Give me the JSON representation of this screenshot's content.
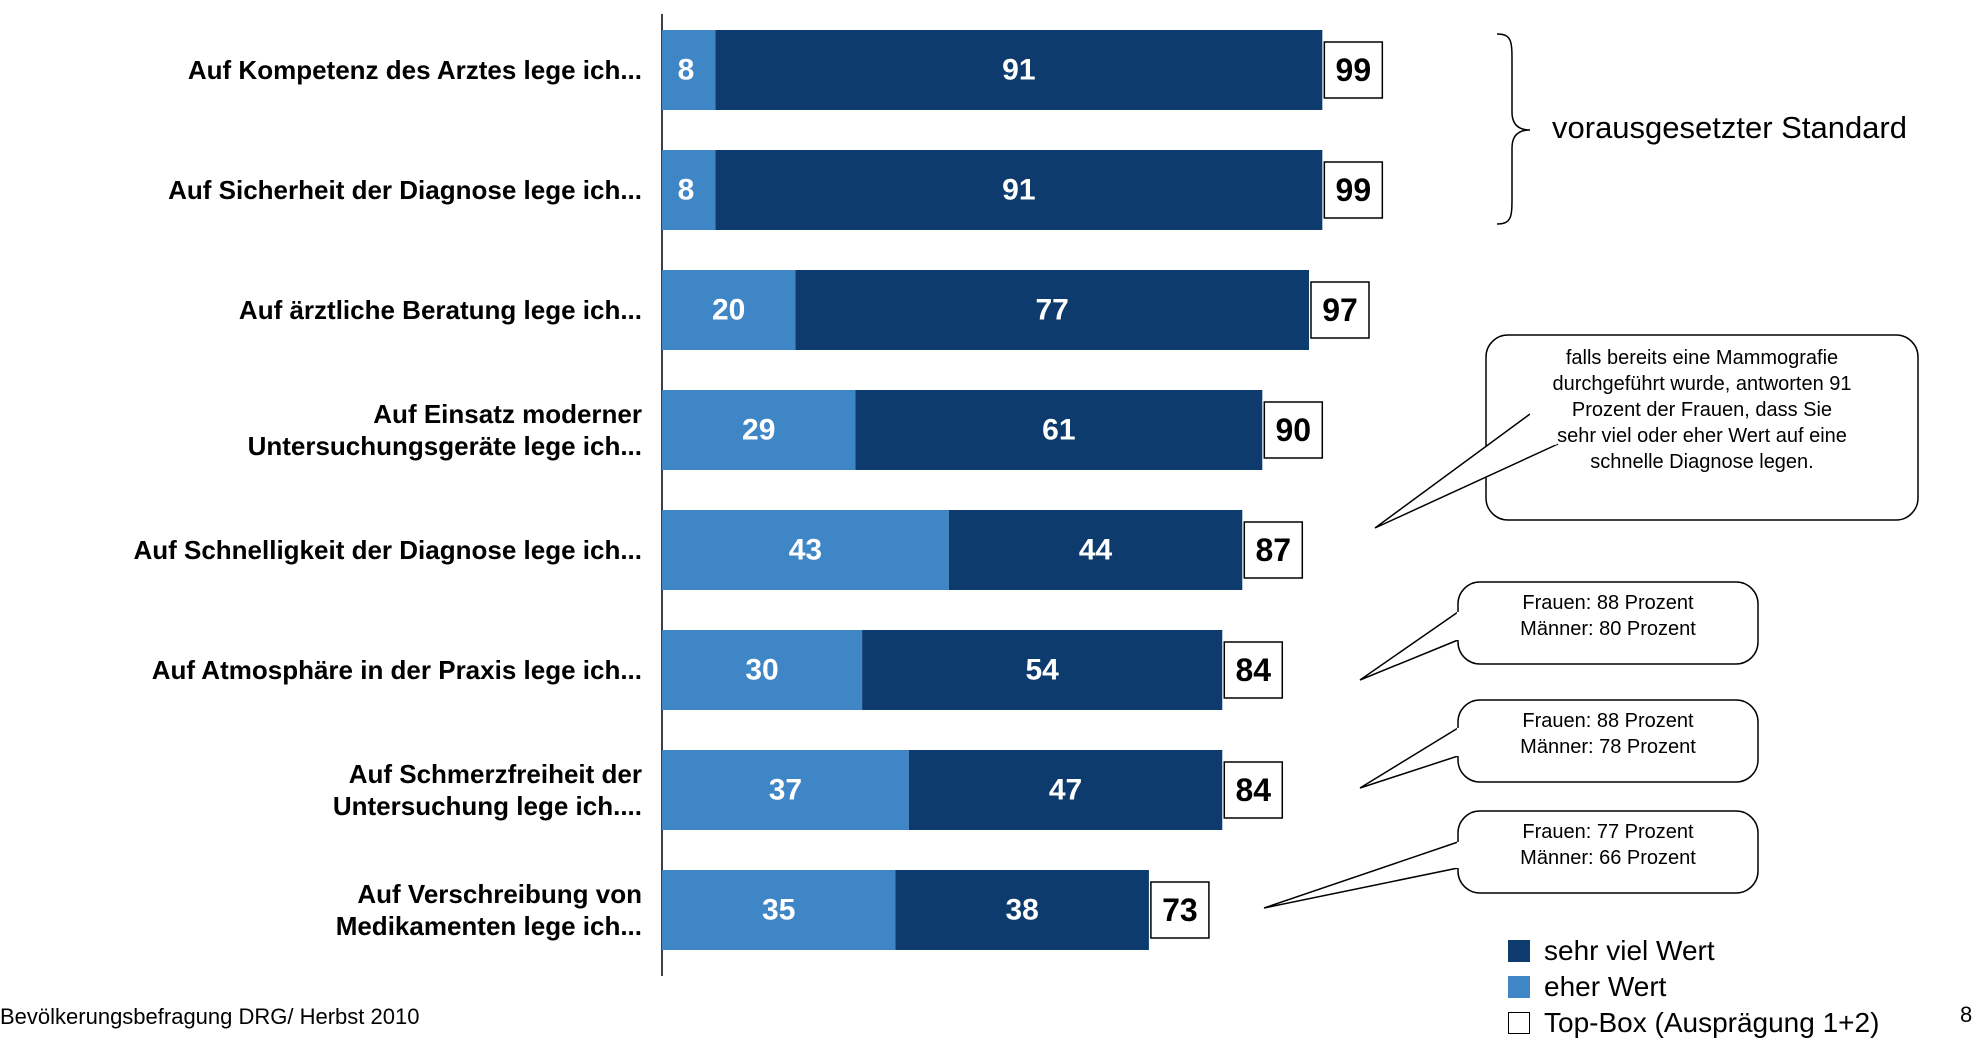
{
  "chart_data": {
    "type": "bar",
    "orientation": "horizontal",
    "stacked": true,
    "categories": [
      "Auf Kompetenz des Arztes lege ich...",
      "Auf Sicherheit der Diagnose lege ich...",
      "Auf ärztliche Beratung lege ich...",
      "Auf Einsatz moderner\nUntersuchungsgeräte lege ich...",
      "Auf Schnelligkeit der Diagnose lege ich...",
      "Auf Atmosphäre in der Praxis lege ich...",
      "Auf Schmerzfreiheit der\nUntersuchung lege ich....",
      "Auf Verschreibung von\nMedikamenten lege ich..."
    ],
    "series": [
      {
        "name": "eher Wert",
        "values": [
          8,
          8,
          20,
          29,
          43,
          30,
          37,
          35
        ]
      },
      {
        "name": "sehr viel Wert",
        "values": [
          91,
          91,
          77,
          61,
          44,
          54,
          47,
          38
        ]
      }
    ],
    "totals": [
      99,
      99,
      97,
      90,
      87,
      84,
      84,
      73
    ],
    "xlim": [
      0,
      100
    ],
    "legend_position": "bottom-right",
    "annotations": {
      "bracket_label": "vorausgesetzter Standard",
      "callouts": [
        {
          "row": 4,
          "text": "falls bereits eine Mammografie\ndurchgeführt wurde, antworten 91\nProzent der Frauen, dass Sie\nsehr viel oder eher Wert auf eine\nschnelle Diagnose legen."
        },
        {
          "row": 5,
          "text": "Frauen: 88 Prozent\nMänner: 80 Prozent"
        },
        {
          "row": 6,
          "text": "Frauen: 88 Prozent\nMänner: 78 Prozent"
        },
        {
          "row": 7,
          "text": "Frauen: 77 Prozent\nMänner: 66 Prozent"
        }
      ]
    }
  },
  "legend": {
    "items": [
      {
        "label": "sehr viel Wert",
        "color": "#0d3b6e"
      },
      {
        "label": "eher Wert",
        "color": "#3f86c7"
      },
      {
        "label": "Top-Box (Ausprägung 1+2)",
        "color": "#ffffff"
      }
    ]
  },
  "footer": {
    "source": "Bevölkerungsbefragung DRG/ Herbst 2010",
    "page_number": "8"
  },
  "colors": {
    "dark": "#0d3b6e",
    "light": "#3f86c7"
  }
}
